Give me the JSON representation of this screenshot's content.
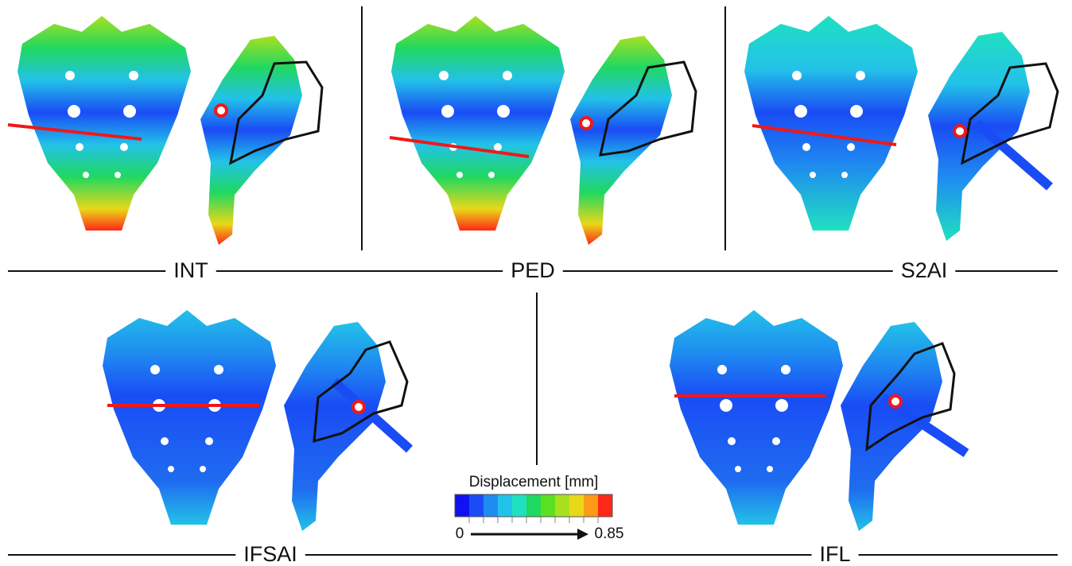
{
  "panels": [
    {
      "label": "INT"
    },
    {
      "label": "PED"
    },
    {
      "label": "S2AI"
    },
    {
      "label": "IFSAI"
    },
    {
      "label": "IFL"
    }
  ],
  "colorbar": {
    "title": "Displacement [mm]",
    "min": 0,
    "max": 0.85,
    "colors": [
      "#1010f0",
      "#1a4cf5",
      "#1f8cf0",
      "#22c2e8",
      "#20e0c0",
      "#20d860",
      "#5ae020",
      "#a8e020",
      "#e8d818",
      "#ff9a18",
      "#ff2818"
    ]
  }
}
